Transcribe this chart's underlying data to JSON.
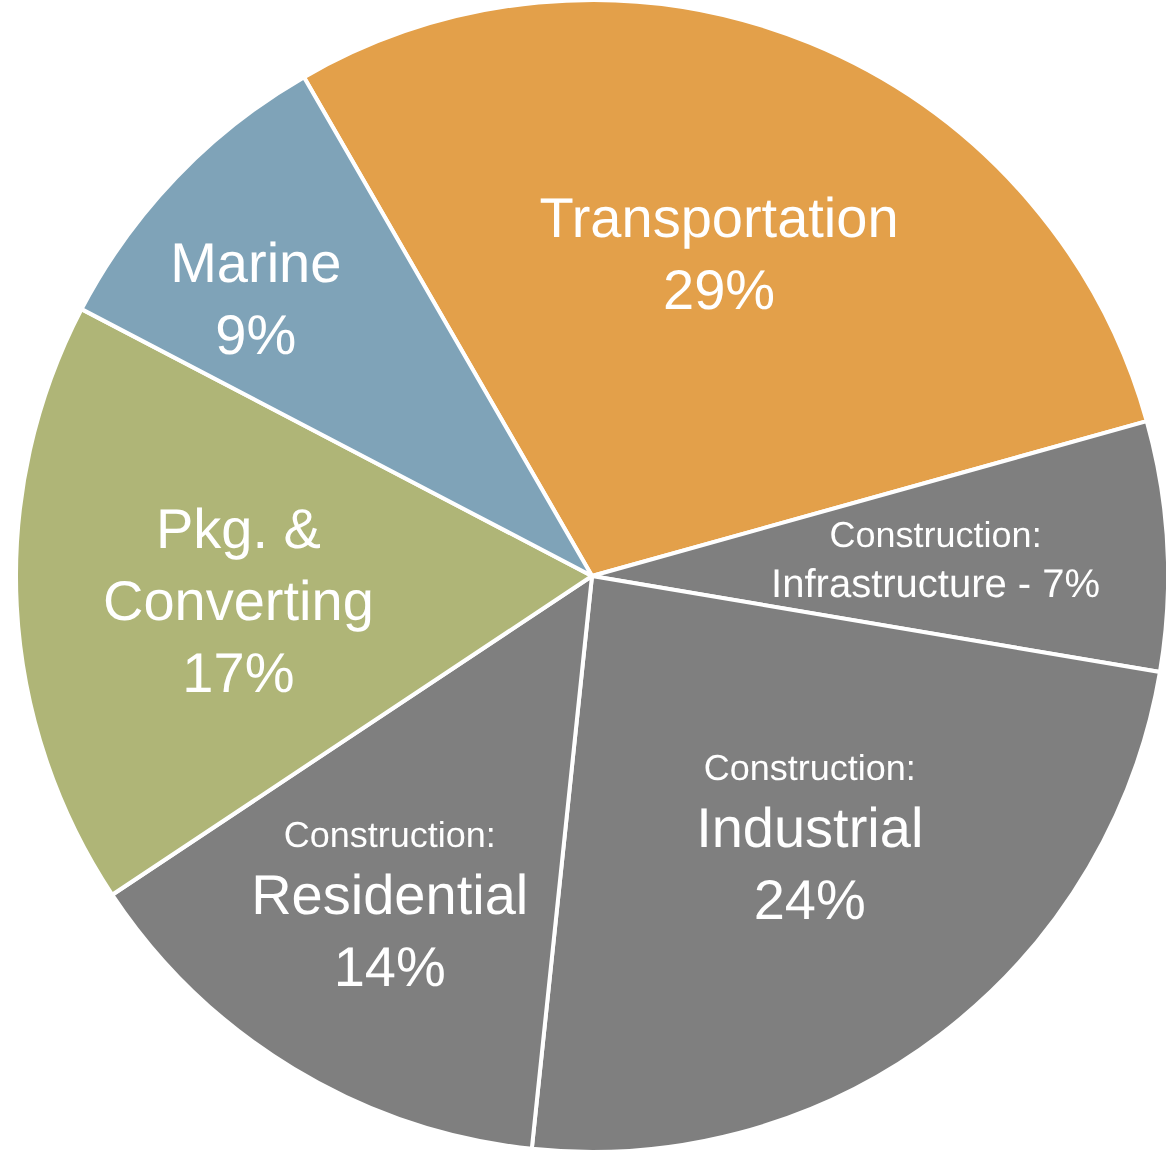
{
  "chart_data": {
    "type": "pie",
    "categories": [
      "Transportation",
      "Construction: Infrastructure -",
      "Construction: Industrial",
      "Construction: Residential",
      "Pkg. & Converting",
      "Marine"
    ],
    "values": [
      29,
      7,
      24,
      14,
      17,
      9
    ],
    "colors": [
      "#e3a04a",
      "#7f7f7f",
      "#7f7f7f",
      "#7f7f7f",
      "#afb577",
      "#7fa3b8"
    ],
    "value_labels": [
      "29%",
      "7%",
      "24%",
      "14%",
      "17%",
      "9%"
    ],
    "legend": false
  }
}
